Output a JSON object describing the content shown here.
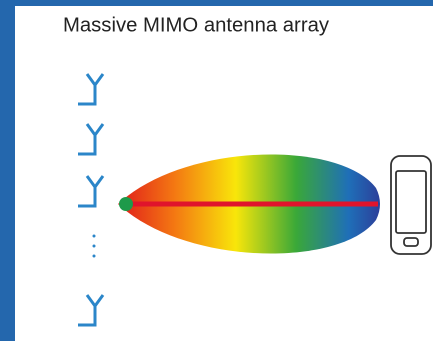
{
  "title": "Massive MIMO antenna array"
}
